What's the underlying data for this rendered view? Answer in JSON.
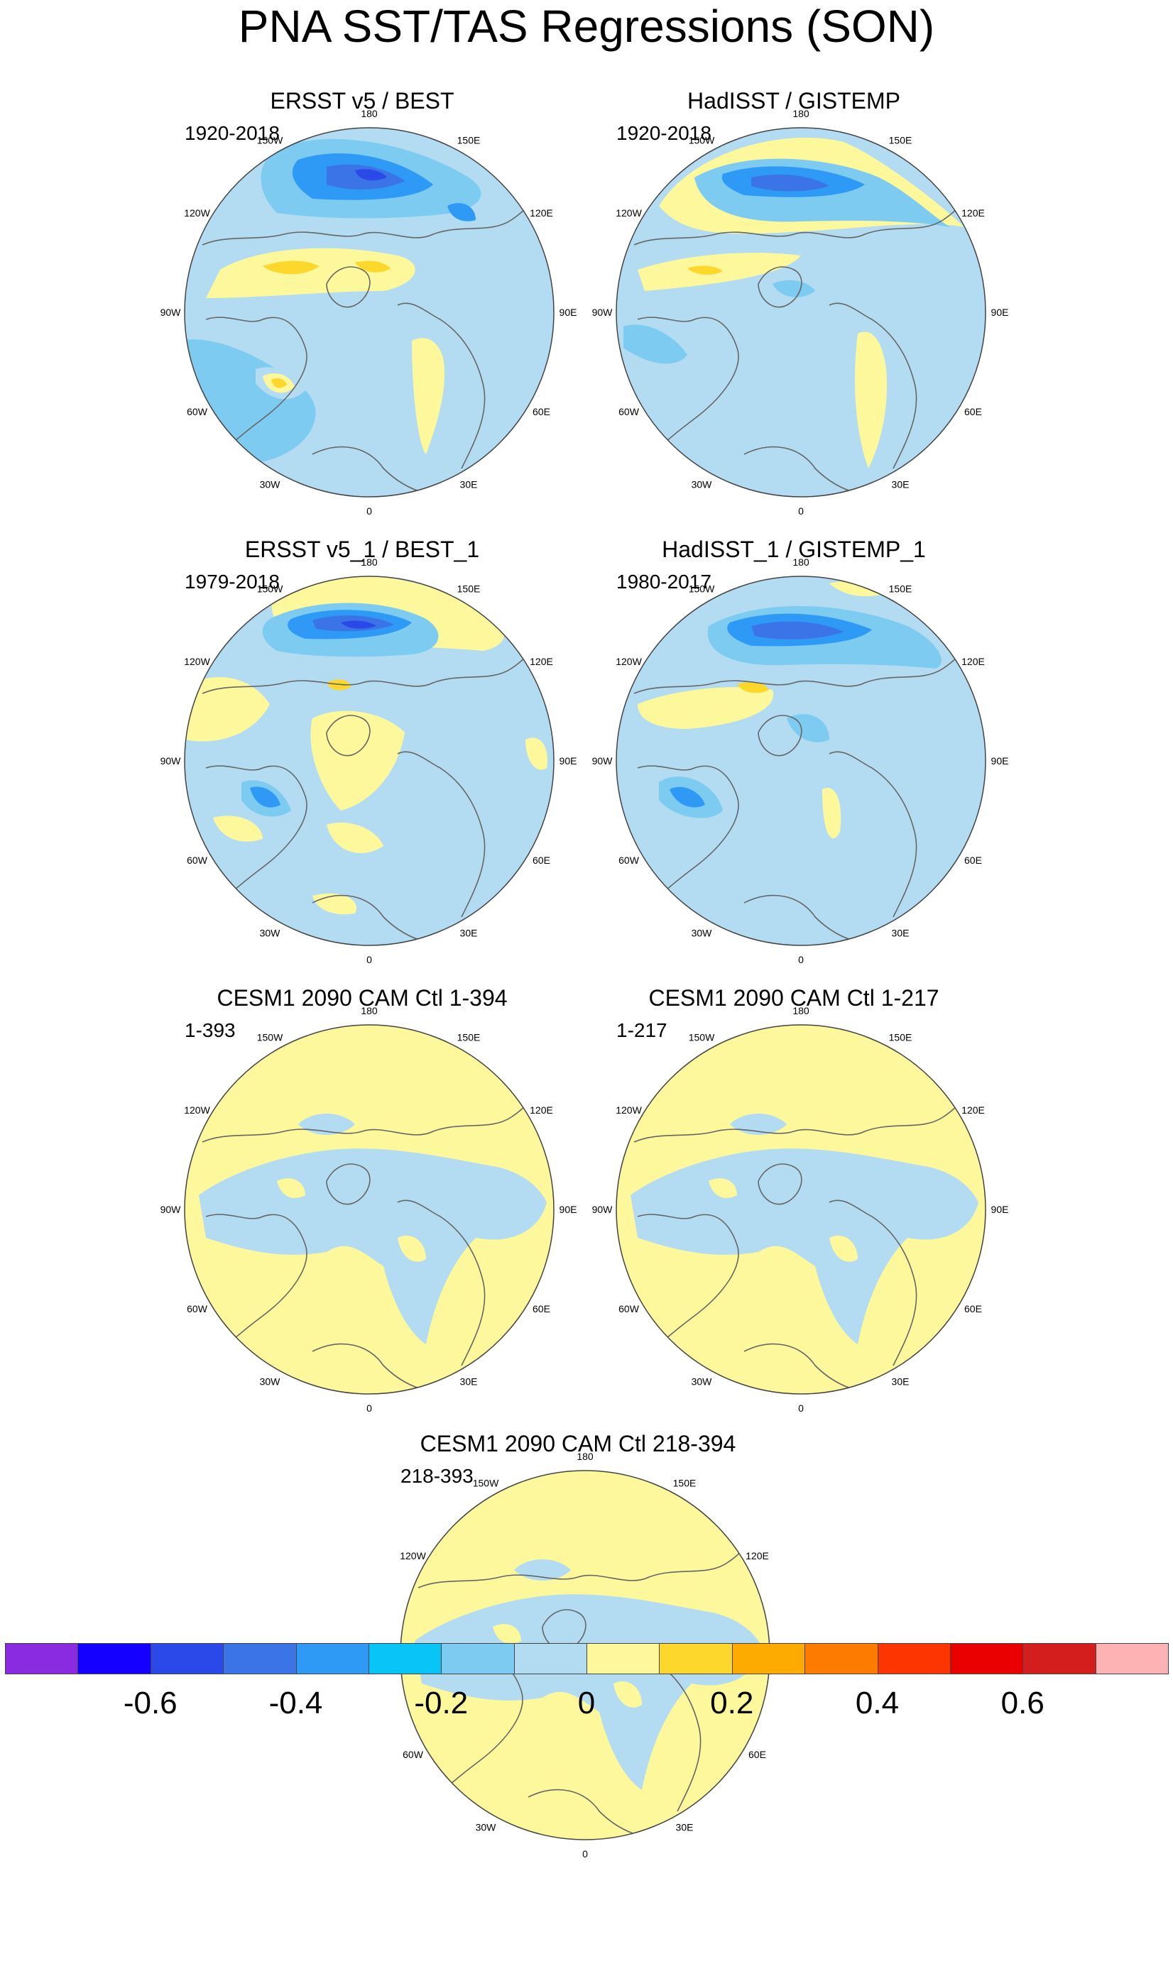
{
  "title": "PNA SST/TAS Regressions (SON)",
  "panels": [
    {
      "title": "ERSST v5 / BEST",
      "period": "1920-2018",
      "pattern": "obs1"
    },
    {
      "title": "HadISST / GISTEMP",
      "period": "1920-2018",
      "pattern": "obs2"
    },
    {
      "title": "ERSST v5_1 / BEST_1",
      "period": "1979-2018",
      "pattern": "obs3"
    },
    {
      "title": "HadISST_1 / GISTEMP_1",
      "period": "1980-2017",
      "pattern": "obs4"
    },
    {
      "title": "CESM1 2090 CAM Ctl 1-394",
      "period": "1-393",
      "pattern": "ctl"
    },
    {
      "title": "CESM1 2090 CAM Ctl 1-217",
      "period": "1-217",
      "pattern": "ctl"
    },
    {
      "title": "CESM1 2090 CAM Ctl 218-394",
      "period": "218-393",
      "pattern": "ctl"
    }
  ],
  "longitude_labels": [
    "180",
    "150E",
    "120E",
    "90E",
    "60E",
    "30E",
    "0",
    "30W",
    "60W",
    "90W",
    "120W",
    "150W"
  ],
  "colorbar": {
    "colors": [
      "#8a2be2",
      "#1400ff",
      "#2b48e8",
      "#3a74e6",
      "#2f9af5",
      "#09c4f7",
      "#7dcbf1",
      "#b3dcf2",
      "#fdf89c",
      "#fdd72b",
      "#fdab00",
      "#fd7c00",
      "#fd3500",
      "#eb0000",
      "#d41e1e",
      "#fdb3b3"
    ],
    "labels": [
      "-0.6",
      "-0.4",
      "-0.2",
      "0",
      "0.2",
      "0.4",
      "0.6"
    ],
    "label_values": [
      -0.6,
      -0.4,
      -0.2,
      0,
      0.2,
      0.4,
      0.6
    ],
    "levels": [
      -0.7,
      -0.6,
      -0.5,
      -0.4,
      -0.3,
      -0.2,
      -0.1,
      0,
      0.1,
      0.2,
      0.3,
      0.4,
      0.5,
      0.6,
      0.7
    ]
  },
  "chart_data": {
    "type": "heatmap",
    "title": "PNA SST/TAS Regressions (SON)",
    "projection": "polar stereographic, north polar view",
    "color_scale_min": -0.7,
    "color_scale_max": 0.7,
    "color_scale_step": 0.1
  }
}
